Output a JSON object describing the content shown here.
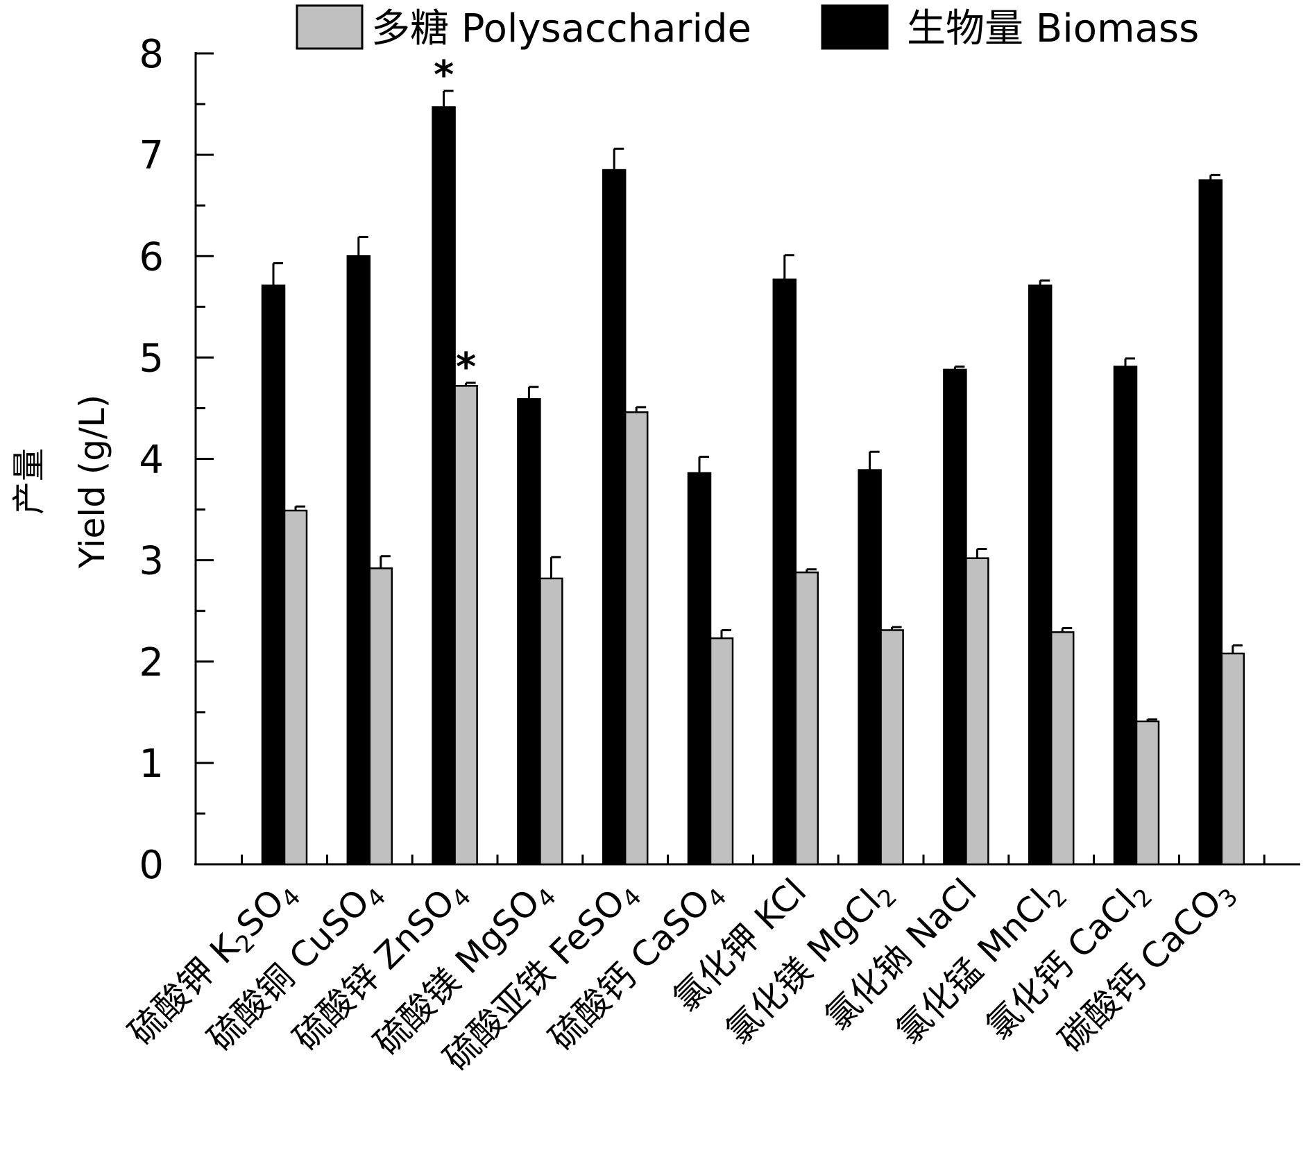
{
  "chart_data": {
    "type": "bar",
    "title": "",
    "xlabel": "",
    "ylabel_zh": "产量",
    "ylabel": "Yield (g/L)",
    "ylim": [
      0,
      8
    ],
    "yticks": [
      "0",
      "1",
      "2",
      "3",
      "4",
      "5",
      "6",
      "7",
      "8"
    ],
    "categories": [
      {
        "zh": "硫酸钾",
        "formula": [
          {
            "t": "K"
          },
          {
            "t": "2",
            "sub": true
          },
          {
            "t": "SO"
          },
          {
            "t": "4",
            "sub": true
          }
        ]
      },
      {
        "zh": "硫酸铜",
        "formula": [
          {
            "t": "CuSO"
          },
          {
            "t": "4",
            "sub": true
          }
        ]
      },
      {
        "zh": "硫酸锌",
        "formula": [
          {
            "t": "ZnSO"
          },
          {
            "t": "4",
            "sub": true
          }
        ]
      },
      {
        "zh": "硫酸镁",
        "formula": [
          {
            "t": "MgSO"
          },
          {
            "t": "4",
            "sub": true
          }
        ]
      },
      {
        "zh": "硫酸亚铁",
        "formula": [
          {
            "t": "FeSO"
          },
          {
            "t": "4",
            "sub": true
          }
        ]
      },
      {
        "zh": "硫酸钙",
        "formula": [
          {
            "t": "CaSO"
          },
          {
            "t": "4",
            "sub": true
          }
        ]
      },
      {
        "zh": "氯化钾",
        "formula": [
          {
            "t": "KCl"
          }
        ]
      },
      {
        "zh": "氯化镁",
        "formula": [
          {
            "t": "MgCl"
          },
          {
            "t": "2",
            "sub": true
          }
        ]
      },
      {
        "zh": "氯化钠",
        "formula": [
          {
            "t": "NaCl"
          }
        ]
      },
      {
        "zh": "氯化锰",
        "formula": [
          {
            "t": "MnCl"
          },
          {
            "t": "2",
            "sub": true
          }
        ]
      },
      {
        "zh": "氯化钙",
        "formula": [
          {
            "t": "CaCl"
          },
          {
            "t": "2",
            "sub": true
          }
        ]
      },
      {
        "zh": "碳酸钙",
        "formula": [
          {
            "t": "CaCO"
          },
          {
            "t": "3",
            "sub": true
          }
        ]
      }
    ],
    "series": [
      {
        "name": "生物量 Biomass",
        "color": "#000000",
        "values": [
          5.71,
          6.0,
          7.47,
          4.59,
          6.85,
          3.86,
          5.77,
          3.89,
          4.88,
          5.71,
          4.91,
          6.75
        ],
        "errors": [
          0.22,
          0.19,
          0.16,
          0.12,
          0.21,
          0.16,
          0.24,
          0.18,
          0.03,
          0.05,
          0.08,
          0.05
        ],
        "significance": [
          "",
          "",
          "*",
          "",
          "",
          "",
          "",
          "",
          "",
          "",
          "",
          ""
        ]
      },
      {
        "name": "多糖 Polysaccharide",
        "color": "#c0c0c0",
        "values": [
          3.49,
          2.92,
          4.72,
          2.82,
          4.46,
          2.23,
          2.88,
          2.31,
          3.02,
          2.29,
          1.41,
          2.08
        ],
        "errors": [
          0.04,
          0.12,
          0.03,
          0.21,
          0.05,
          0.08,
          0.03,
          0.03,
          0.09,
          0.04,
          0.02,
          0.08
        ],
        "significance": [
          "",
          "",
          "*",
          "",
          "",
          "",
          "",
          "",
          "",
          "",
          "",
          ""
        ]
      }
    ],
    "legend": {
      "placement": "top-right",
      "order": [
        1,
        0
      ]
    }
  }
}
